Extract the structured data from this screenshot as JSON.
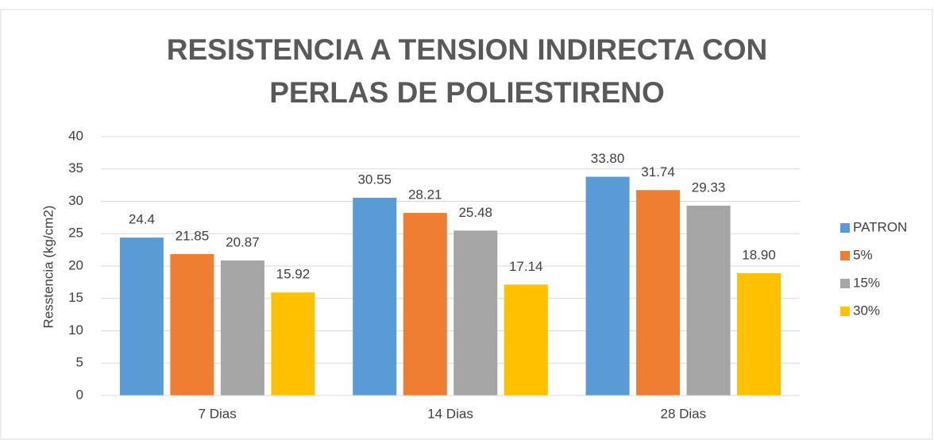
{
  "chart_data": {
    "type": "bar",
    "title": "RESISTENCIA A TENSION INDIRECTA CON PERLAS DE POLIESTIRENO",
    "y_label": "Resstencia (kg/cm2)",
    "categories": [
      "7 Dias",
      "14 Dias",
      "28 Dias"
    ],
    "series": [
      {
        "name": "PATRON",
        "color": "#5b9bd5",
        "values": [
          24.4,
          30.55,
          33.8
        ],
        "value_labels": [
          "24.4",
          "30.55",
          "33.80"
        ]
      },
      {
        "name": "5%",
        "color": "#ed7d31",
        "values": [
          21.85,
          28.21,
          31.74
        ],
        "value_labels": [
          "21.85",
          "28.21",
          "31.74"
        ]
      },
      {
        "name": "15%",
        "color": "#a5a5a5",
        "values": [
          20.87,
          25.48,
          29.33
        ],
        "value_labels": [
          "20.87",
          "25.48",
          "29.33"
        ]
      },
      {
        "name": "30%",
        "color": "#ffc000",
        "values": [
          15.92,
          17.14,
          18.9
        ],
        "value_labels": [
          "15.92",
          "17.14",
          "18.90"
        ]
      }
    ],
    "ylim": [
      0,
      40
    ],
    "yticks": [
      0,
      5,
      10,
      15,
      20,
      25,
      30,
      35,
      40
    ],
    "grid": true,
    "legend": "right"
  }
}
